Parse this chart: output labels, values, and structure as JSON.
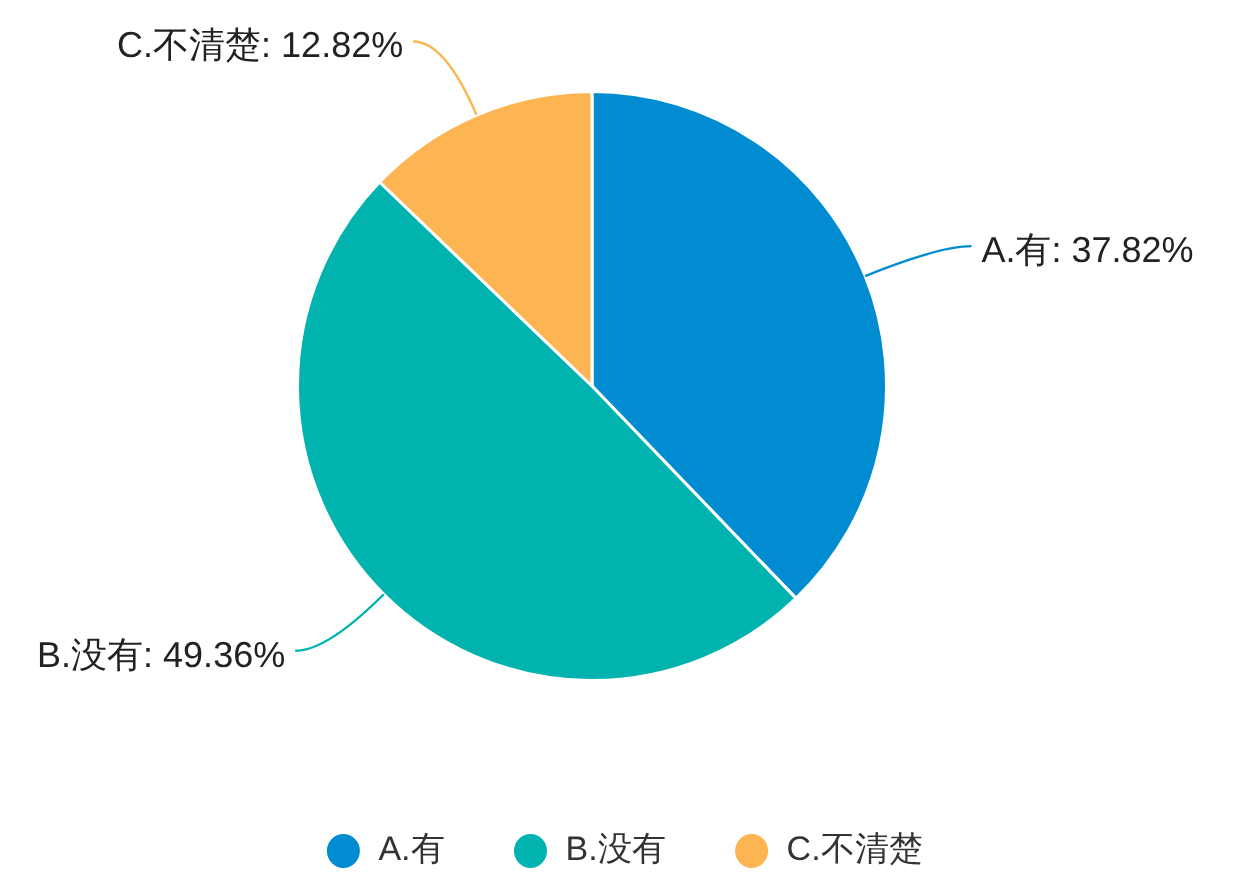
{
  "chart_data": {
    "type": "pie",
    "categories": [
      "A.有",
      "B.没有",
      "C.不清楚"
    ],
    "values": [
      37.82,
      49.36,
      12.82
    ],
    "colors": [
      "#018bd0",
      "#00b3ae",
      "#fcb552"
    ],
    "value_labels": [
      "A.有: 37.82%",
      "B.没有: 49.36%",
      "C.不清楚: 12.82%"
    ],
    "legend": "bottom"
  }
}
